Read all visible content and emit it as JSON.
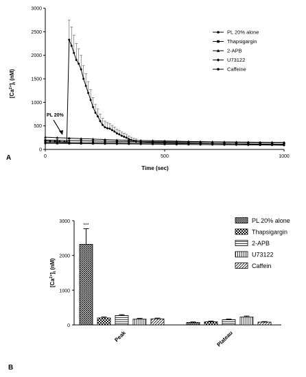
{
  "panel_labels": [
    "A",
    "B"
  ],
  "chart_data": [
    {
      "type": "line",
      "panel": "A",
      "xlabel": "Time (sec)",
      "ylabel_main": "[Ca",
      "ylabel_sup": "2+",
      "ylabel_tail": "]",
      "ylabel_sub": "i",
      "ylabel_unit": " (nM)",
      "xlim": [
        0,
        1000
      ],
      "ylim": [
        0,
        3000
      ],
      "xticks": [
        "0",
        "500",
        "1000"
      ],
      "yticks": [
        "0",
        "500",
        "1000",
        "1500",
        "2000",
        "2500",
        "3000"
      ],
      "grid": false,
      "legend_position": "top-right",
      "annotation": {
        "text": "PL 20%",
        "x": 90,
        "y": 200
      },
      "series": [
        {
          "name": "PL 20% alone",
          "marker": "circle",
          "x": [
            0,
            20,
            40,
            60,
            80,
            90,
            100,
            110,
            120,
            130,
            140,
            150,
            160,
            170,
            180,
            190,
            200,
            210,
            220,
            230,
            240,
            250,
            260,
            270,
            280,
            290,
            300,
            310,
            320,
            330,
            340,
            350,
            360,
            370,
            380,
            400,
            450,
            500,
            550,
            600,
            650,
            700,
            750,
            800,
            850,
            900,
            950,
            1000
          ],
          "y": [
            180,
            175,
            170,
            165,
            160,
            160,
            2330,
            2200,
            2050,
            1900,
            1820,
            1700,
            1500,
            1350,
            1200,
            1050,
            900,
            780,
            700,
            600,
            520,
            470,
            450,
            440,
            410,
            380,
            340,
            320,
            290,
            270,
            250,
            220,
            200,
            180,
            170,
            160,
            150,
            145,
            140,
            135,
            130,
            125,
            120,
            115,
            110,
            105,
            100,
            95
          ],
          "error": [
            0,
            0,
            0,
            0,
            0,
            0,
            420,
            400,
            380,
            350,
            320,
            300,
            280,
            260,
            240,
            220,
            200,
            180,
            160,
            150,
            140,
            130,
            120,
            110,
            100,
            95,
            90,
            85,
            80,
            75,
            70,
            65,
            60,
            55,
            50,
            0,
            0,
            0,
            0,
            0,
            0,
            0,
            0,
            0,
            0,
            0,
            0,
            0
          ]
        },
        {
          "name": "Thapsigargin",
          "marker": "square",
          "x": [
            0,
            50,
            100,
            150,
            200,
            250,
            300,
            350,
            400,
            450,
            500,
            550,
            600,
            650,
            700,
            750,
            800,
            850,
            900,
            950,
            1000
          ],
          "y": [
            150,
            148,
            146,
            144,
            142,
            140,
            138,
            136,
            134,
            132,
            130,
            128,
            126,
            124,
            122,
            120,
            118,
            116,
            114,
            112,
            110
          ]
        },
        {
          "name": "2-APB",
          "marker": "triangle",
          "x": [
            0,
            50,
            100,
            150,
            200,
            250,
            300,
            350,
            400,
            450,
            500,
            550,
            600,
            650,
            700,
            750,
            800,
            850,
            900,
            950,
            1000
          ],
          "y": [
            260,
            250,
            240,
            230,
            220,
            210,
            200,
            195,
            190,
            185,
            180,
            175,
            170,
            165,
            160,
            158,
            156,
            154,
            152,
            150,
            148
          ]
        },
        {
          "name": "U73122",
          "marker": "diamond",
          "x": [
            0,
            50,
            100,
            150,
            200,
            250,
            300,
            350,
            400,
            450,
            500,
            550,
            600,
            650,
            700,
            750,
            800,
            850,
            900,
            950,
            1000
          ],
          "y": [
            200,
            195,
            190,
            185,
            180,
            175,
            170,
            168,
            166,
            164,
            162,
            160,
            158,
            156,
            154,
            152,
            150,
            148,
            146,
            144,
            142
          ]
        },
        {
          "name": "Caffeine",
          "marker": "circle",
          "x": [
            0,
            50,
            100,
            150,
            200,
            250,
            300,
            350,
            400,
            450,
            500,
            550,
            600,
            650,
            700,
            750,
            800,
            850,
            900,
            950,
            1000
          ],
          "y": [
            130,
            128,
            126,
            124,
            122,
            120,
            118,
            116,
            114,
            112,
            110,
            108,
            106,
            104,
            102,
            100,
            98,
            96,
            94,
            92,
            90
          ]
        }
      ]
    },
    {
      "type": "bar",
      "panel": "B",
      "ylabel_main": "[Ca",
      "ylabel_sup": "2+",
      "ylabel_tail": "]",
      "ylabel_sub": "i",
      "ylabel_unit": " (nM)",
      "ylim": [
        0,
        3000
      ],
      "yticks": [
        "0",
        "1000",
        "2000",
        "3000"
      ],
      "categories": [
        "Peak",
        "Plateau"
      ],
      "grid": false,
      "legend_position": "top-right",
      "significance": "***",
      "series": [
        {
          "name": "PL 20% alone",
          "pattern": "crosshatch",
          "values": [
            2320,
            70
          ],
          "errors": [
            450,
            15
          ]
        },
        {
          "name": "Thapsigargin",
          "pattern": "checker",
          "values": [
            200,
            90
          ],
          "errors": [
            30,
            20
          ]
        },
        {
          "name": "2-APB",
          "pattern": "hlines",
          "values": [
            270,
            150
          ],
          "errors": [
            25,
            20
          ]
        },
        {
          "name": "U73122",
          "pattern": "vlines",
          "values": [
            170,
            230
          ],
          "errors": [
            20,
            25
          ]
        },
        {
          "name": "Caffein",
          "pattern": "dhatch",
          "values": [
            175,
            80
          ],
          "errors": [
            20,
            15
          ]
        }
      ]
    }
  ]
}
